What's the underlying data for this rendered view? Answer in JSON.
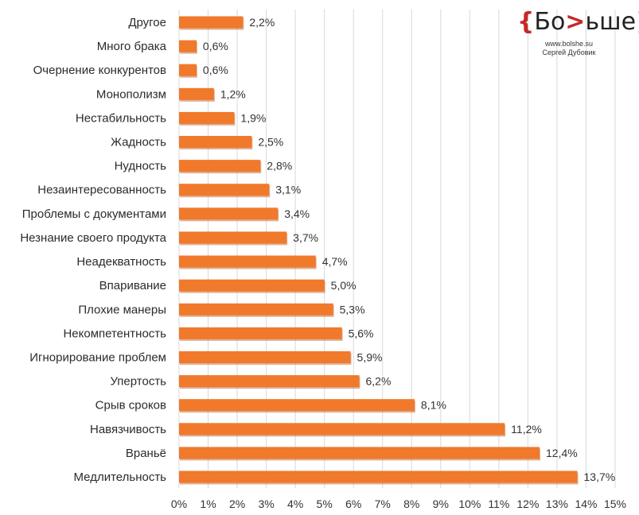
{
  "logo": {
    "brace_open": "{",
    "text_before": "Бо",
    "arrow": ">",
    "text_after": "ьше",
    "brace_close": "}",
    "url": "www.bolshe.su",
    "author": "Сергей Дубовик"
  },
  "chart_data": {
    "type": "bar",
    "orientation": "horizontal",
    "title": "",
    "xlabel": "",
    "ylabel": "",
    "xlim": [
      0,
      15
    ],
    "grid": true,
    "bar_color": "#f0792b",
    "bar_shadow_color": "#b9531a",
    "grid_color": "#d9d9d9",
    "categories": [
      "Другое",
      "Много брака",
      "Очернение конкурентов",
      "Монополизм",
      "Нестабильность",
      "Жадность",
      "Нудность",
      "Незаинтересованность",
      "Проблемы с документами",
      "Незнание своего продукта",
      "Неадекватность",
      "Впаривание",
      "Плохие манеры",
      "Некомпетентность",
      "Игнорирование проблем",
      "Упертость",
      "Срыв сроков",
      "Навязчивость",
      "Враньё",
      "Медлительность"
    ],
    "values": [
      2.2,
      0.6,
      0.6,
      1.2,
      1.9,
      2.5,
      2.8,
      3.1,
      3.4,
      3.7,
      4.7,
      5.0,
      5.3,
      5.6,
      5.9,
      6.2,
      8.1,
      11.2,
      12.4,
      13.7
    ],
    "value_labels": [
      "2,2%",
      "0,6%",
      "0,6%",
      "1,2%",
      "1,9%",
      "2,5%",
      "2,8%",
      "3,1%",
      "3,4%",
      "3,7%",
      "4,7%",
      "5,0%",
      "5,3%",
      "5,6%",
      "5,9%",
      "6,2%",
      "8,1%",
      "11,2%",
      "12,4%",
      "13,7%"
    ],
    "xticks": [
      0,
      1,
      2,
      3,
      4,
      5,
      6,
      7,
      8,
      9,
      10,
      11,
      12,
      13,
      14,
      15
    ],
    "xtick_labels": [
      "0%",
      "1%",
      "2%",
      "3%",
      "4%",
      "5%",
      "6%",
      "7%",
      "8%",
      "9%",
      "10%",
      "11%",
      "12%",
      "13%",
      "14%",
      "15%"
    ]
  }
}
